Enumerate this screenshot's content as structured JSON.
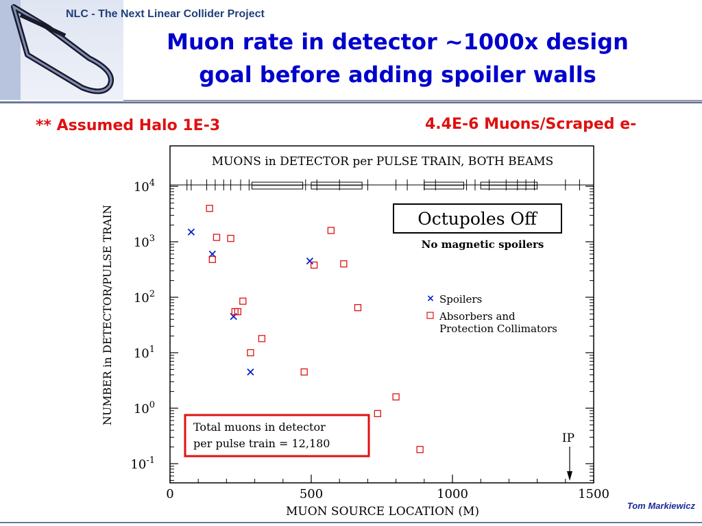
{
  "header": {
    "project": "NLC - The Next Linear Collider Project"
  },
  "slide": {
    "title_line1": "Muon rate in detector ~1000x design",
    "title_line2": "goal before adding spoiler walls",
    "note_left": "** Assumed Halo 1E-3",
    "note_right": "4.4E-6 Muons/Scraped e-",
    "author": "Tom Markiewicz"
  },
  "colors": {
    "title": "#0000cc",
    "notes": "#e01010",
    "spoiler_marker": "#0022cc",
    "absorber_marker": "#dd1111",
    "total_box_border": "#e01010"
  },
  "chart_data": {
    "type": "scatter",
    "title": "MUONS in DETECTOR per PULSE TRAIN, BOTH BEAMS",
    "xlabel": "MUON SOURCE LOCATION (M)",
    "ylabel": "NUMBER in DETECTOR/PULSE TRAIN",
    "xlim": [
      0,
      1500
    ],
    "ylim_log10": [
      -1.3,
      4.15
    ],
    "y_scale": "log",
    "x_ticks": [
      "0",
      "500",
      "1000",
      "1500"
    ],
    "y_ticks": [
      {
        "base": "10",
        "exp": "4"
      },
      {
        "base": "10",
        "exp": "3"
      },
      {
        "base": "10",
        "exp": "2"
      },
      {
        "base": "10",
        "exp": "1"
      },
      {
        "base": "10",
        "exp": "0"
      },
      {
        "base": "10",
        "exp": "-1"
      }
    ],
    "grid": false,
    "series": [
      {
        "name": "Spoilers",
        "marker": "x",
        "points": [
          [
            75,
            1500
          ],
          [
            150,
            600
          ],
          [
            225,
            45
          ],
          [
            285,
            4.5
          ],
          [
            495,
            450
          ]
        ]
      },
      {
        "name": "Absorbers and Protection Collimators",
        "marker": "square",
        "points": [
          [
            140,
            4000
          ],
          [
            150,
            480
          ],
          [
            165,
            1200
          ],
          [
            215,
            1150
          ],
          [
            230,
            55
          ],
          [
            240,
            55
          ],
          [
            258,
            85
          ],
          [
            285,
            10
          ],
          [
            325,
            18
          ],
          [
            475,
            4.5
          ],
          [
            510,
            380
          ],
          [
            570,
            1600
          ],
          [
            615,
            400
          ],
          [
            665,
            65
          ],
          [
            735,
            0.8
          ],
          [
            800,
            1.6
          ],
          [
            885,
            0.18
          ]
        ]
      }
    ],
    "annotations": {
      "box_title": "Octupoles Off",
      "box_subtitle": "No magnetic spoilers",
      "total_line1": "Total muons in detector",
      "total_line2": "per pulse train = 12,180",
      "ip_label": "IP",
      "ip_x": 1415
    }
  }
}
